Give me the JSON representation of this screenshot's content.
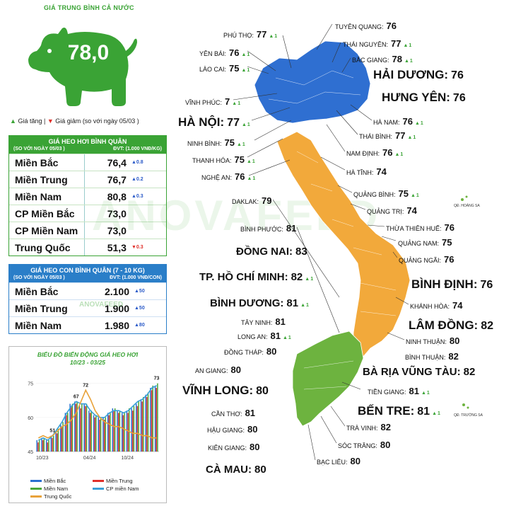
{
  "national": {
    "title": "GIÁ TRUNG BÌNH CẢ NƯỚC",
    "value": "78,0"
  },
  "legend": {
    "up_icon": "▲",
    "up_label": "Giá tăng",
    "sep": "|",
    "down_icon": "▼",
    "down_label": "Giá giảm",
    "compare": "(so với ngày",
    "date": "05/03 )"
  },
  "live_pig": {
    "title": "GIÁ HEO HƠI BÌNH QUÂN",
    "sub_left": "(SO VỚI NGÀY 05/03 )",
    "sub_right": "ĐVT: (1.000 VNĐ/KG)",
    "rows": [
      {
        "name": "Miền Bắc",
        "value": "76,4",
        "change": "▲0.8",
        "dir": "up"
      },
      {
        "name": "Miền Trung",
        "value": "76,7",
        "change": "▲0.2",
        "dir": "up"
      },
      {
        "name": "Miền Nam",
        "value": "80,8",
        "change": "▲0.3",
        "dir": "up"
      },
      {
        "name": "CP Miền Bắc",
        "value": "73,0",
        "change": "",
        "dir": ""
      },
      {
        "name": "CP Miền Nam",
        "value": "73,0",
        "change": "",
        "dir": ""
      },
      {
        "name": "Trung Quốc",
        "value": "51,3",
        "change": "▼0.3",
        "dir": "dn"
      }
    ]
  },
  "piglet": {
    "title": "GIÁ HEO CON BÌNH QUÂN (7 - 10 KG)",
    "sub_left": "(SO VỚI NGÀY 05/03 )",
    "sub_right": "ĐVT: (1.000 VNĐ/CON)",
    "rows": [
      {
        "name": "Miền Bắc",
        "value": "2.100",
        "change": "▲50",
        "dir": "up"
      },
      {
        "name": "Miền Trung",
        "value": "1.900",
        "change": "▲50",
        "dir": "up"
      },
      {
        "name": "Miền Nam",
        "value": "1.980",
        "change": "▲80",
        "dir": "up"
      }
    ]
  },
  "watermark": "ANOVAFEED",
  "watermark_small": "ANOVAFEED",
  "chart_data": {
    "type": "bar",
    "title": "BIỂU ĐỒ BIẾN ĐỘNG GIÁ HEO HƠI",
    "subtitle": "10/23 - 03/25",
    "x_ticks": [
      "10/23",
      "04/24",
      "10/24"
    ],
    "y_ticks": [
      45,
      60,
      75
    ],
    "ylim": [
      45,
      78
    ],
    "annotations": [
      "51",
      "67",
      "72",
      "73"
    ],
    "series": [
      {
        "name": "Miền Bắc",
        "color": "#2a6fd1",
        "values": [
          50,
          51,
          50,
          52,
          54,
          57,
          62,
          66,
          67,
          65,
          66,
          63,
          61,
          60,
          60,
          62,
          64,
          63,
          62,
          63,
          64,
          66,
          68,
          70,
          73,
          74
        ]
      },
      {
        "name": "Miền Trung",
        "color": "#e0302a",
        "values": [
          49,
          50,
          49,
          51,
          53,
          56,
          61,
          65,
          66,
          64,
          65,
          62,
          60,
          59,
          59,
          61,
          63,
          62,
          61,
          62,
          63,
          65,
          67,
          69,
          72,
          73
        ]
      },
      {
        "name": "Miền Nam",
        "color": "#4aa63a",
        "values": [
          50,
          51,
          50,
          52,
          55,
          58,
          62,
          66,
          67,
          66,
          66,
          63,
          61,
          60,
          60,
          62,
          64,
          63,
          62,
          64,
          65,
          67,
          69,
          71,
          74,
          75
        ]
      },
      {
        "name": "CP miền Nam",
        "color": "#3aa0d8",
        "values": [
          50,
          51,
          50,
          52,
          55,
          58,
          62,
          65,
          67,
          66,
          66,
          63,
          61,
          60,
          60,
          62,
          63,
          63,
          62,
          63,
          65,
          67,
          68,
          70,
          73,
          74
        ]
      },
      {
        "name": "Trung Quốc",
        "color": "#e8a23a",
        "values": [
          51,
          52,
          51,
          52,
          54,
          56,
          57,
          59,
          62,
          67,
          72,
          68,
          63,
          60,
          58,
          57,
          56,
          56,
          55,
          54,
          53,
          53,
          52,
          52,
          51,
          51
        ]
      }
    ]
  },
  "map_labels": [
    {
      "id": "phu-tho",
      "name": "PHÚ THỌ:",
      "value": "77",
      "delta": "1",
      "size": "n",
      "x": 316,
      "y": 41
    },
    {
      "id": "yen-bai",
      "name": "YÊN BÁI:",
      "value": "76",
      "delta": "1",
      "size": "n",
      "x": 282,
      "y": 67
    },
    {
      "id": "lao-cai",
      "name": "LÀO CAI:",
      "value": "75",
      "delta": "1",
      "size": "n",
      "x": 282,
      "y": 89
    },
    {
      "id": "vinh-phuc",
      "name": "VĨNH PHÚC:",
      "value": "7",
      "delta": "1",
      "size": "n",
      "x": 262,
      "y": 136
    },
    {
      "id": "ha-noi",
      "name": "HÀ NỘI:",
      "value": "77",
      "delta": "1",
      "size": "xl",
      "x": 252,
      "y": 163
    },
    {
      "id": "ninh-binh",
      "name": "NINH BÌNH:",
      "value": "75",
      "delta": "1",
      "size": "n",
      "x": 265,
      "y": 194
    },
    {
      "id": "thanh-hoa",
      "name": "THANH HÓA:",
      "value": "75",
      "delta": "1",
      "size": "n",
      "x": 272,
      "y": 218
    },
    {
      "id": "nghe-an",
      "name": "NGHỆ AN:",
      "value": "76",
      "delta": "1",
      "size": "n",
      "x": 285,
      "y": 242
    },
    {
      "id": "daklak",
      "name": "DAKLAK:",
      "value": "79",
      "delta": "",
      "size": "n",
      "x": 328,
      "y": 276
    },
    {
      "id": "binh-phuoc",
      "name": "BÌNH PHƯỚC:",
      "value": "81",
      "delta": "",
      "size": "n",
      "x": 340,
      "y": 315
    },
    {
      "id": "dong-nai",
      "name": "ĐỒNG NAI:",
      "value": "83",
      "delta": "",
      "size": "big",
      "x": 334,
      "y": 347
    },
    {
      "id": "tphcm",
      "name": "TP. HỒ CHÍ MINH:",
      "value": "82",
      "delta": "1",
      "size": "big",
      "x": 282,
      "y": 383
    },
    {
      "id": "binh-duong",
      "name": "BÌNH DƯƠNG:",
      "value": "81",
      "delta": "1",
      "size": "big",
      "x": 297,
      "y": 420
    },
    {
      "id": "tay-ninh",
      "name": "TÂY NINH:",
      "value": "81",
      "delta": "",
      "size": "n",
      "x": 341,
      "y": 447
    },
    {
      "id": "long-an",
      "name": "LONG AN:",
      "value": "81",
      "delta": "1",
      "size": "n",
      "x": 336,
      "y": 467
    },
    {
      "id": "dong-thap",
      "name": "ĐỒNG THÁP:",
      "value": "80",
      "delta": "",
      "size": "n",
      "x": 317,
      "y": 489
    },
    {
      "id": "an-giang",
      "name": "AN GIANG:",
      "value": "80",
      "delta": "",
      "size": "n",
      "x": 276,
      "y": 515
    },
    {
      "id": "vinh-long",
      "name": "VĨNH LONG:",
      "value": "80",
      "delta": "",
      "size": "xl",
      "x": 258,
      "y": 542
    },
    {
      "id": "can-tho",
      "name": "CẦN THƠ:",
      "value": "81",
      "delta": "",
      "size": "n",
      "x": 299,
      "y": 576
    },
    {
      "id": "hau-giang",
      "name": "HẬU GIANG:",
      "value": "80",
      "delta": "",
      "size": "n",
      "x": 293,
      "y": 599
    },
    {
      "id": "kien-giang",
      "name": "KIÊN GIANG:",
      "value": "80",
      "delta": "",
      "size": "n",
      "x": 294,
      "y": 624
    },
    {
      "id": "ca-mau",
      "name": "CÀ MAU:",
      "value": "80",
      "delta": "",
      "size": "big",
      "x": 291,
      "y": 655
    },
    {
      "id": "tuyen-quang",
      "name": "TUYÊN QUANG:",
      "value": "76",
      "delta": "",
      "size": "n",
      "x": 474,
      "y": 29
    },
    {
      "id": "thai-nguyen",
      "name": "THÁI NGUYÊN:",
      "value": "77",
      "delta": "1",
      "size": "n",
      "x": 485,
      "y": 54
    },
    {
      "id": "bac-giang",
      "name": "BẮC GIANG:",
      "value": "78",
      "delta": "1",
      "size": "n",
      "x": 498,
      "y": 76
    },
    {
      "id": "hai-duong",
      "name": "HẢI DƯƠNG:",
      "value": "76",
      "delta": "",
      "size": "xl",
      "x": 528,
      "y": 96
    },
    {
      "id": "hung-yen",
      "name": "HƯNG YÊN:",
      "value": "76",
      "delta": "",
      "size": "xl",
      "x": 540,
      "y": 128
    },
    {
      "id": "ha-nam",
      "name": "HÀ NAM:",
      "value": "76",
      "delta": "1",
      "size": "n",
      "x": 528,
      "y": 164
    },
    {
      "id": "thai-binh",
      "name": "THÁI BÌNH:",
      "value": "77",
      "delta": "1",
      "size": "n",
      "x": 508,
      "y": 184
    },
    {
      "id": "nam-dinh",
      "name": "NAM ĐỊNH:",
      "value": "76",
      "delta": "1",
      "size": "n",
      "x": 490,
      "y": 208
    },
    {
      "id": "ha-tinh",
      "name": "HÀ TĨNH:",
      "value": "74",
      "delta": "",
      "size": "n",
      "x": 490,
      "y": 235
    },
    {
      "id": "quang-binh",
      "name": "QUẢNG BÌNH:",
      "value": "75",
      "delta": "1",
      "size": "n",
      "x": 500,
      "y": 266
    },
    {
      "id": "quang-tri",
      "name": "QUẢNG TRỊ:",
      "value": "74",
      "delta": "",
      "size": "n",
      "x": 519,
      "y": 290
    },
    {
      "id": "tt-hue",
      "name": "THỪA THIÊN HUẾ:",
      "value": "76",
      "delta": "",
      "size": "n",
      "x": 546,
      "y": 314
    },
    {
      "id": "quang-nam",
      "name": "QUẢNG NAM:",
      "value": "75",
      "delta": "",
      "size": "n",
      "x": 563,
      "y": 335
    },
    {
      "id": "quang-ngai",
      "name": "QUẢNG NGÃI:",
      "value": "76",
      "delta": "",
      "size": "n",
      "x": 564,
      "y": 359
    },
    {
      "id": "binh-dinh",
      "name": "BÌNH ĐỊNH:",
      "value": "76",
      "delta": "",
      "size": "xl",
      "x": 582,
      "y": 392
    },
    {
      "id": "khanh-hoa",
      "name": "KHÁNH HÒA:",
      "value": "74",
      "delta": "",
      "size": "n",
      "x": 580,
      "y": 424
    },
    {
      "id": "lam-dong",
      "name": "LÂM ĐỒNG:",
      "value": "82",
      "delta": "",
      "size": "xl",
      "x": 578,
      "y": 450
    },
    {
      "id": "ninh-thuan",
      "name": "NINH THUẬN:",
      "value": "80",
      "delta": "",
      "size": "n",
      "x": 574,
      "y": 474
    },
    {
      "id": "binh-thuan",
      "name": "BÌNH THUẬN:",
      "value": "82",
      "delta": "",
      "size": "n",
      "x": 573,
      "y": 496
    },
    {
      "id": "br-vt",
      "name": "BÀ RỊA VŨNG TÀU:",
      "value": "82",
      "delta": "",
      "size": "big",
      "x": 513,
      "y": 517
    },
    {
      "id": "tien-giang",
      "name": "TIỀN GIANG:",
      "value": "81",
      "delta": "1",
      "size": "n",
      "x": 520,
      "y": 545
    },
    {
      "id": "ben-tre",
      "name": "BẾN TRE:",
      "value": "81",
      "delta": "1",
      "size": "xl",
      "x": 506,
      "y": 571
    },
    {
      "id": "tra-vinh",
      "name": "TRÀ VINH:",
      "value": "82",
      "delta": "",
      "size": "n",
      "x": 490,
      "y": 596
    },
    {
      "id": "soc-trang",
      "name": "SÓC TRĂNG:",
      "value": "80",
      "delta": "",
      "size": "n",
      "x": 478,
      "y": 621
    },
    {
      "id": "bac-lieu",
      "name": "BẠC LIÊU:",
      "value": "80",
      "delta": "",
      "size": "n",
      "x": 448,
      "y": 644
    }
  ],
  "islands": {
    "paracel": "QĐ. HOÀNG SA",
    "spratly": "QĐ. TRƯỜNG SA"
  }
}
